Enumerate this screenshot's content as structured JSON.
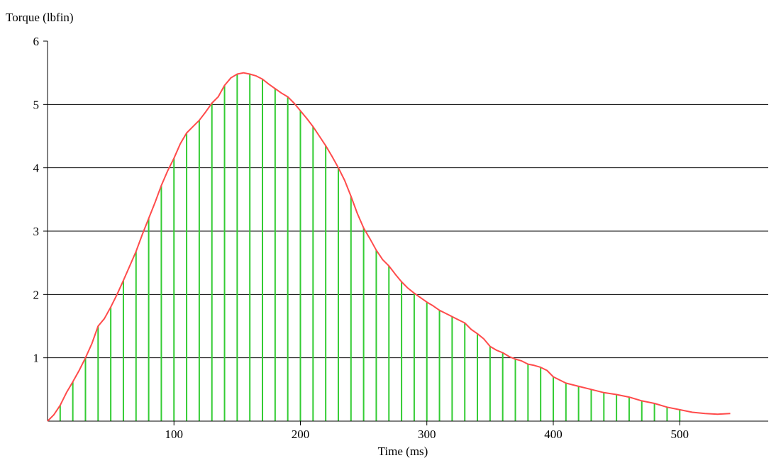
{
  "chart_data": {
    "type": "line",
    "ylabel": "Torque (lbfin)",
    "xlabel": "Time (ms)",
    "xlim": [
      0,
      570
    ],
    "ylim": [
      0,
      6
    ],
    "x_ticks": [
      100,
      200,
      300,
      400,
      500
    ],
    "y_ticks": [
      1,
      2,
      3,
      4,
      5,
      6
    ],
    "grid": "horizontal",
    "series": [
      {
        "color": "#ff4b4b",
        "x": [
          0,
          5,
          10,
          15,
          20,
          25,
          30,
          35,
          40,
          45,
          50,
          55,
          60,
          65,
          70,
          75,
          80,
          85,
          90,
          95,
          100,
          105,
          110,
          115,
          120,
          125,
          130,
          135,
          140,
          145,
          150,
          155,
          160,
          165,
          170,
          175,
          180,
          185,
          190,
          195,
          200,
          205,
          210,
          215,
          220,
          225,
          230,
          235,
          240,
          245,
          250,
          255,
          260,
          265,
          270,
          275,
          280,
          285,
          290,
          295,
          300,
          305,
          310,
          315,
          320,
          325,
          330,
          335,
          340,
          345,
          350,
          355,
          360,
          365,
          370,
          375,
          380,
          385,
          390,
          395,
          400,
          410,
          420,
          430,
          440,
          450,
          460,
          470,
          480,
          490,
          500,
          510,
          520,
          530,
          540
        ],
        "values": [
          0.0,
          0.1,
          0.25,
          0.45,
          0.62,
          0.8,
          1.0,
          1.22,
          1.5,
          1.62,
          1.8,
          2.0,
          2.22,
          2.45,
          2.68,
          2.95,
          3.2,
          3.45,
          3.72,
          3.95,
          4.15,
          4.38,
          4.55,
          4.65,
          4.75,
          4.88,
          5.02,
          5.12,
          5.3,
          5.42,
          5.48,
          5.5,
          5.48,
          5.45,
          5.4,
          5.32,
          5.25,
          5.18,
          5.12,
          5.02,
          4.9,
          4.78,
          4.65,
          4.5,
          4.35,
          4.18,
          4.0,
          3.8,
          3.55,
          3.28,
          3.05,
          2.88,
          2.7,
          2.55,
          2.45,
          2.32,
          2.2,
          2.1,
          2.02,
          1.95,
          1.88,
          1.82,
          1.75,
          1.7,
          1.65,
          1.6,
          1.55,
          1.45,
          1.38,
          1.3,
          1.18,
          1.12,
          1.08,
          1.02,
          0.98,
          0.95,
          0.9,
          0.88,
          0.85,
          0.8,
          0.7,
          0.6,
          0.55,
          0.5,
          0.45,
          0.42,
          0.38,
          0.32,
          0.28,
          0.22,
          0.18,
          0.14,
          0.12,
          0.11,
          0.12
        ]
      }
    ],
    "sample_lines": {
      "color": "#33cc33",
      "x": [
        10,
        20,
        30,
        40,
        50,
        60,
        70,
        80,
        90,
        100,
        110,
        120,
        130,
        140,
        150,
        160,
        170,
        180,
        190,
        200,
        210,
        220,
        230,
        240,
        250,
        260,
        270,
        280,
        290,
        300,
        310,
        320,
        330,
        340,
        350,
        360,
        370,
        380,
        390,
        400,
        410,
        420,
        430,
        440,
        450,
        460,
        470,
        480,
        490,
        500
      ]
    }
  }
}
